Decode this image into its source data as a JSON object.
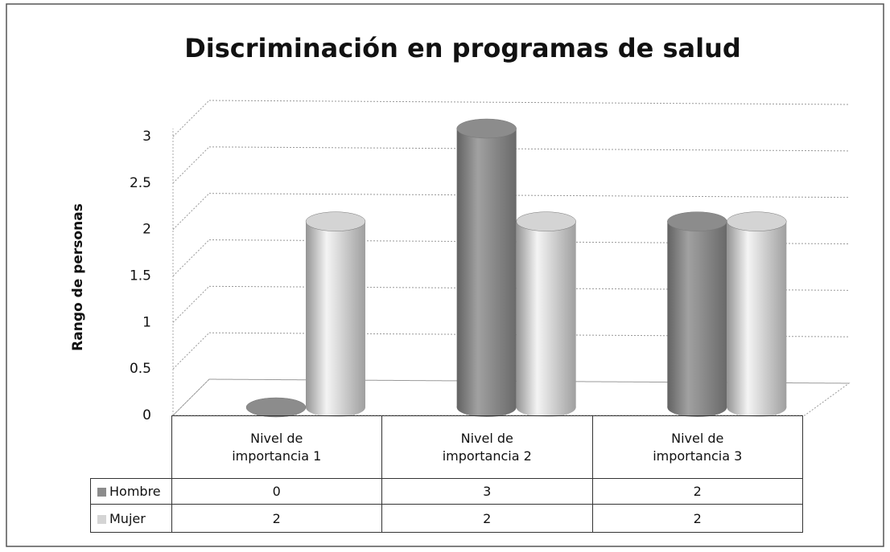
{
  "chart_data": {
    "type": "bar3d",
    "title": "Discriminación  en programas  de salud",
    "y_label": "Rango de personas",
    "categories": [
      "Nivel de importancia 1",
      "Nivel de importancia 2",
      "Nivel de importancia 3"
    ],
    "series": [
      {
        "name": "Hombre",
        "color": "#8c8c8c",
        "values": [
          0,
          3,
          2
        ]
      },
      {
        "name": "Mujer",
        "color": "#d4d4d4",
        "values": [
          2,
          2,
          2
        ]
      }
    ],
    "ylim": [
      0,
      3
    ],
    "yticks": [
      0,
      0.5,
      1,
      1.5,
      2,
      2.5,
      3
    ],
    "grid": true,
    "data_table": true
  }
}
